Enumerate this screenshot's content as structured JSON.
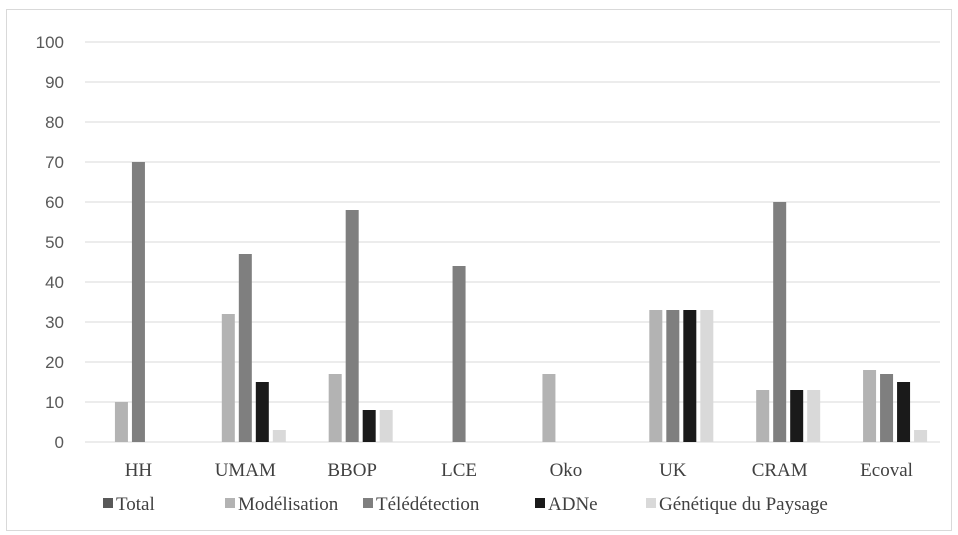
{
  "chart_data": {
    "type": "bar",
    "title": "",
    "xlabel": "",
    "ylabel": "",
    "ylim": [
      0,
      100
    ],
    "yticks": [
      0,
      10,
      20,
      30,
      40,
      50,
      60,
      70,
      80,
      90,
      100
    ],
    "grid": true,
    "legend_position": "bottom",
    "categories": [
      "HH",
      "UMAM",
      "BBOP",
      "LCE",
      "Oko",
      "UK",
      "CRAM",
      "Ecoval"
    ],
    "series": [
      {
        "name": "Total",
        "color": "#595959",
        "values": [
          0,
          0,
          0,
          0,
          0,
          0,
          0,
          0
        ]
      },
      {
        "name": "Modélisation",
        "color": "#b3b3b3",
        "values": [
          10,
          32,
          17,
          0,
          17,
          33,
          13,
          18
        ]
      },
      {
        "name": "Télédétection",
        "color": "#7f7f7f",
        "values": [
          70,
          47,
          58,
          44,
          0,
          33,
          60,
          17
        ]
      },
      {
        "name": "ADNe",
        "color": "#1a1a1a",
        "values": [
          0,
          15,
          8,
          0,
          0,
          33,
          13,
          15
        ]
      },
      {
        "name": "Génétique du Paysage",
        "color": "#d9d9d9",
        "values": [
          0,
          3,
          8,
          0,
          0,
          33,
          13,
          3
        ]
      }
    ]
  }
}
